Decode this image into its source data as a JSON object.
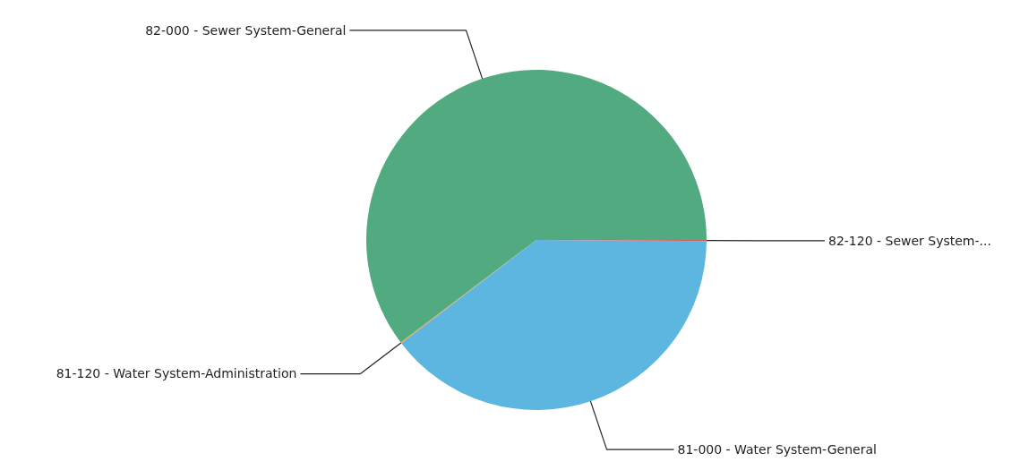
{
  "chart_data": {
    "type": "pie",
    "categories": [
      "82-000 - Sewer System-General",
      "81-120 - Water System-Administration",
      "81-000 - Water System-General",
      "82-120 - Sewer System-..."
    ],
    "values": [
      60.3,
      0.1,
      39.5,
      0.1
    ],
    "colors": [
      "#52ab80",
      "#e0a040",
      "#5db6e0",
      "#d06060"
    ],
    "legend": false
  }
}
